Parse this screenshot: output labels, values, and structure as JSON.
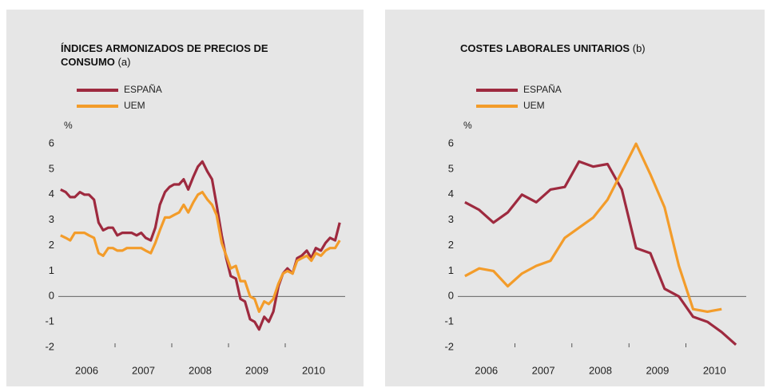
{
  "chart_data": [
    {
      "type": "line",
      "title": "ÍNDICES ARMONIZADOS DE PRECIOS DE CONSUMO",
      "title_note": "(a)",
      "y_unit": "%",
      "year_labels": [
        "2006",
        "2007",
        "2008",
        "2009",
        "2010"
      ],
      "x": [
        2006.04,
        2006.13,
        2006.21,
        2006.29,
        2006.38,
        2006.46,
        2006.54,
        2006.63,
        2006.71,
        2006.79,
        2006.88,
        2006.96,
        2007.04,
        2007.13,
        2007.21,
        2007.29,
        2007.38,
        2007.46,
        2007.54,
        2007.63,
        2007.71,
        2007.79,
        2007.88,
        2007.96,
        2008.04,
        2008.13,
        2008.21,
        2008.29,
        2008.38,
        2008.46,
        2008.54,
        2008.63,
        2008.71,
        2008.79,
        2008.88,
        2008.96,
        2009.04,
        2009.13,
        2009.21,
        2009.29,
        2009.38,
        2009.46,
        2009.54,
        2009.63,
        2009.71,
        2009.79,
        2009.88,
        2009.96,
        2010.04,
        2010.13,
        2010.21,
        2010.29,
        2010.38,
        2010.46,
        2010.54,
        2010.63,
        2010.71,
        2010.79,
        2010.88,
        2010.96
      ],
      "series": [
        {
          "name": "ESPAÑA",
          "color": "#9e2a3f",
          "values": [
            4.2,
            4.1,
            3.9,
            3.9,
            4.1,
            4.0,
            4.0,
            3.8,
            2.9,
            2.6,
            2.7,
            2.7,
            2.4,
            2.5,
            2.5,
            2.5,
            2.4,
            2.5,
            2.3,
            2.2,
            2.7,
            3.6,
            4.1,
            4.3,
            4.4,
            4.4,
            4.6,
            4.2,
            4.7,
            5.1,
            5.3,
            4.9,
            4.6,
            3.6,
            2.4,
            1.5,
            0.8,
            0.7,
            -0.1,
            -0.2,
            -0.9,
            -1.0,
            -1.3,
            -0.8,
            -1.0,
            -0.6,
            0.4,
            0.9,
            1.1,
            0.9,
            1.5,
            1.6,
            1.8,
            1.5,
            1.9,
            1.8,
            2.1,
            2.3,
            2.2,
            2.9
          ]
        },
        {
          "name": "UEM",
          "color": "#f39c2a",
          "values": [
            2.4,
            2.3,
            2.2,
            2.5,
            2.5,
            2.5,
            2.4,
            2.3,
            1.7,
            1.6,
            1.9,
            1.9,
            1.8,
            1.8,
            1.9,
            1.9,
            1.9,
            1.9,
            1.8,
            1.7,
            2.1,
            2.6,
            3.1,
            3.1,
            3.2,
            3.3,
            3.6,
            3.3,
            3.7,
            4.0,
            4.1,
            3.8,
            3.6,
            3.2,
            2.1,
            1.6,
            1.1,
            1.2,
            0.6,
            0.6,
            0.0,
            -0.1,
            -0.6,
            -0.2,
            -0.3,
            -0.1,
            0.5,
            0.9,
            1.0,
            0.9,
            1.4,
            1.5,
            1.6,
            1.4,
            1.7,
            1.6,
            1.8,
            1.9,
            1.9,
            2.2
          ]
        }
      ],
      "xlim": [
        2006,
        2011
      ],
      "xticks": [
        2007,
        2008,
        2009,
        2010
      ],
      "ylim": [
        -2,
        6
      ],
      "yticks": [
        -2,
        -1,
        0,
        1,
        2,
        3,
        4,
        5,
        6
      ]
    },
    {
      "type": "line",
      "title": "COSTES LABORALES UNITARIOS",
      "title_note": "(b)",
      "y_unit": "%",
      "year_labels": [
        "2006",
        "2007",
        "2008",
        "2009",
        "2010"
      ],
      "x": [
        2006.125,
        2006.375,
        2006.625,
        2006.875,
        2007.125,
        2007.375,
        2007.625,
        2007.875,
        2008.125,
        2008.375,
        2008.625,
        2008.875,
        2009.125,
        2009.375,
        2009.625,
        2009.875,
        2010.125,
        2010.375,
        2010.625,
        2010.875
      ],
      "series": [
        {
          "name": "ESPAÑA",
          "color": "#9e2a3f",
          "values": [
            3.7,
            3.4,
            2.9,
            3.3,
            4.0,
            3.7,
            4.2,
            4.3,
            5.3,
            5.1,
            5.2,
            4.2,
            1.9,
            1.7,
            0.3,
            0.0,
            -0.8,
            -1.0,
            -1.4,
            -1.9
          ]
        },
        {
          "name": "UEM",
          "color": "#f39c2a",
          "values": [
            0.8,
            1.1,
            1.0,
            0.4,
            0.9,
            1.2,
            1.4,
            2.3,
            2.7,
            3.1,
            3.8,
            4.9,
            6.0,
            4.8,
            3.5,
            1.2,
            -0.5,
            -0.6,
            -0.5,
            null
          ]
        }
      ],
      "xlim": [
        2006,
        2011
      ],
      "xticks": [
        2007,
        2008,
        2009,
        2010
      ],
      "ylim": [
        -2,
        6
      ],
      "yticks": [
        -2,
        -1,
        0,
        1,
        2,
        3,
        4,
        5,
        6
      ]
    }
  ]
}
